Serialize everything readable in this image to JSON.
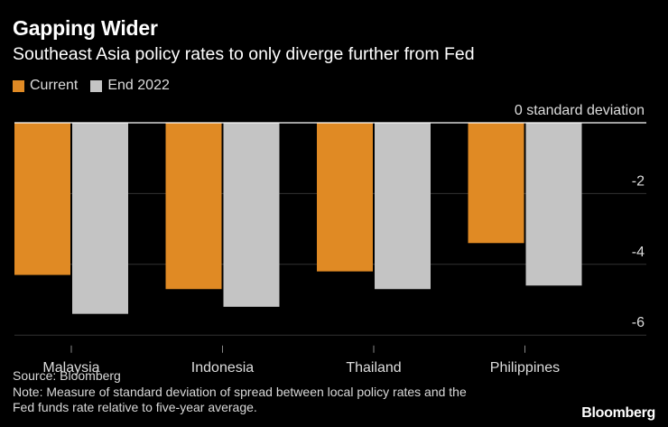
{
  "title": "Gapping Wider",
  "subtitle": "Southeast Asia policy rates to only diverge further from Fed",
  "legend": [
    {
      "label": "Current",
      "color": "#e08a24"
    },
    {
      "label": "End 2022",
      "color": "#c4c4c4"
    }
  ],
  "chart_data": {
    "type": "bar",
    "categories": [
      "Malaysia",
      "Indonesia",
      "Thailand",
      "Philippines"
    ],
    "series": [
      {
        "name": "Current",
        "values": [
          -4.3,
          -4.7,
          -4.2,
          -3.4
        ]
      },
      {
        "name": "End 2022",
        "values": [
          -5.4,
          -5.2,
          -4.7,
          -4.6
        ]
      }
    ],
    "ylim": [
      -6.5,
      0
    ],
    "yticks": [
      0,
      -2,
      -4,
      -6
    ],
    "ytick_labels": [
      "0 standard deviation",
      "-2",
      "-4",
      "-6"
    ],
    "xlabel": "",
    "ylabel": "standard deviation"
  },
  "source": "Source: Bloomberg",
  "note_line1": "Note: Measure of standard deviation of spread between local policy rates and the",
  "note_line2": "Fed funds rate relative to five-year average.",
  "brand": "Bloomberg"
}
